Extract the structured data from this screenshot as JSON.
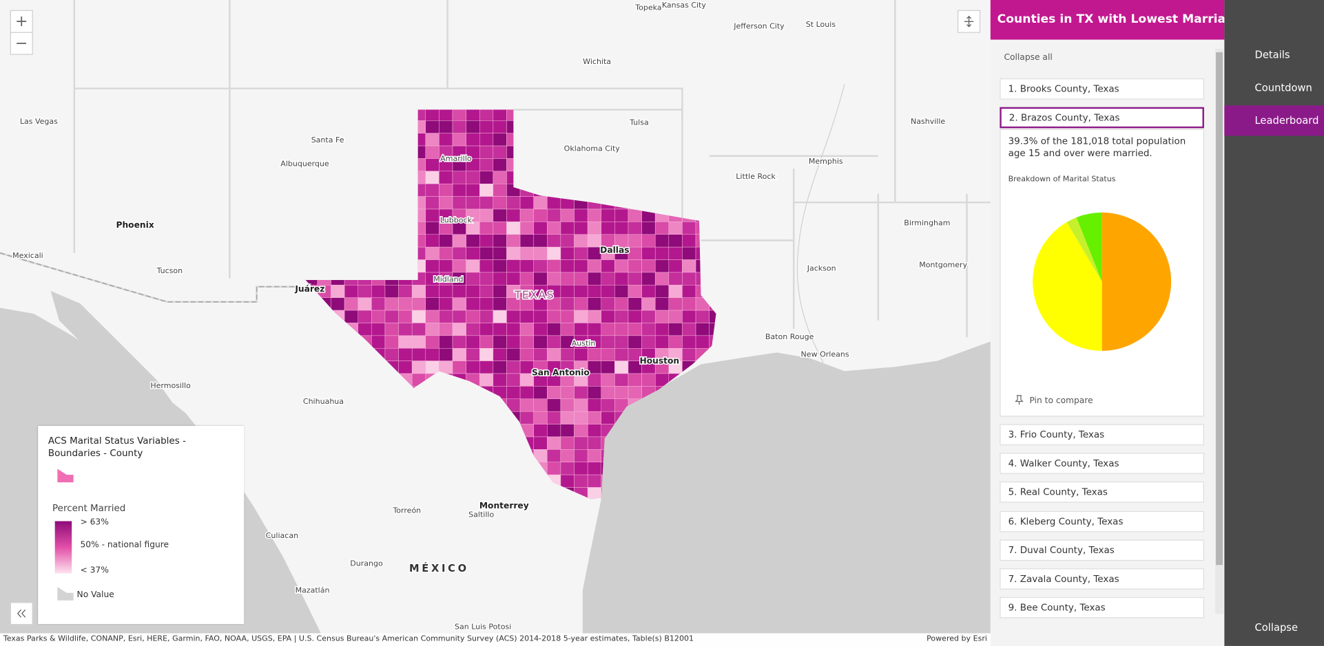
{
  "map": {
    "zoom_in": "+",
    "zoom_out": "−",
    "labels": [
      "Topeka",
      "Kansas City",
      "Jefferson City",
      "St Louis",
      "Wichita",
      "Las Vegas",
      "Santa Fe",
      "Tulsa",
      "Nashville",
      "Albuquerque",
      "Oklahoma City",
      "Amarillo",
      "Memphis",
      "Little Rock",
      "Lubbock",
      "Birmingham",
      "Phoenix",
      "Dallas",
      "Mexicali",
      "Montgomery",
      "Tucson",
      "Jackson",
      "Midland",
      "Juárez",
      "TEXAS",
      "Baton Rouge",
      "Austin",
      "New Orleans",
      "Houston",
      "San Antonio",
      "Hermosillo",
      "Chihuahua",
      "Monterrey",
      "Torreón",
      "Saltillo",
      "Culiacan",
      "Durango",
      "MÉXICO",
      "Mazatlán",
      "San Luis Potosi"
    ],
    "legend": {
      "title": "ACS Marital Status Variables - Boundaries - County",
      "field": "Percent Married",
      "high": "> 63%",
      "mid": "50% - national figure",
      "low": "< 37%",
      "no_value": "No Value"
    },
    "attribution": "Texas Parks & Wildlife, CONANP, Esri, HERE, Garmin, FAO, NOAA, USGS, EPA | U.S. Census Bureau's American Community Survey (ACS) 2014-2018 5-year estimates, Table(s) B12001",
    "powered_by": "Powered by Esri"
  },
  "panel": {
    "title": "Counties in TX with Lowest Marriage Rates",
    "collapse_all": "Collapse all",
    "items": [
      "1. Brooks County, Texas",
      "2. Brazos County, Texas",
      "3. Frio County, Texas",
      "4. Walker County, Texas",
      "5. Real County, Texas",
      "6. Kleberg County, Texas",
      "7. Duval County, Texas",
      "7. Zavala County, Texas",
      "9. Bee County, Texas"
    ],
    "expanded": {
      "text": "39.3% of the 181,018 total population age 15 and over were married.",
      "chart_title": "Breakdown of Marital Status",
      "pin": "Pin to compare"
    }
  },
  "chart_data": {
    "type": "pie",
    "values": [
      50,
      41.5,
      2.5,
      6
    ],
    "colors": [
      "#ffa500",
      "#ffff00",
      "#c6f02c",
      "#66f000"
    ]
  },
  "nav": {
    "items": [
      "Details",
      "Countdown",
      "Leaderboard"
    ],
    "collapse": "Collapse"
  }
}
